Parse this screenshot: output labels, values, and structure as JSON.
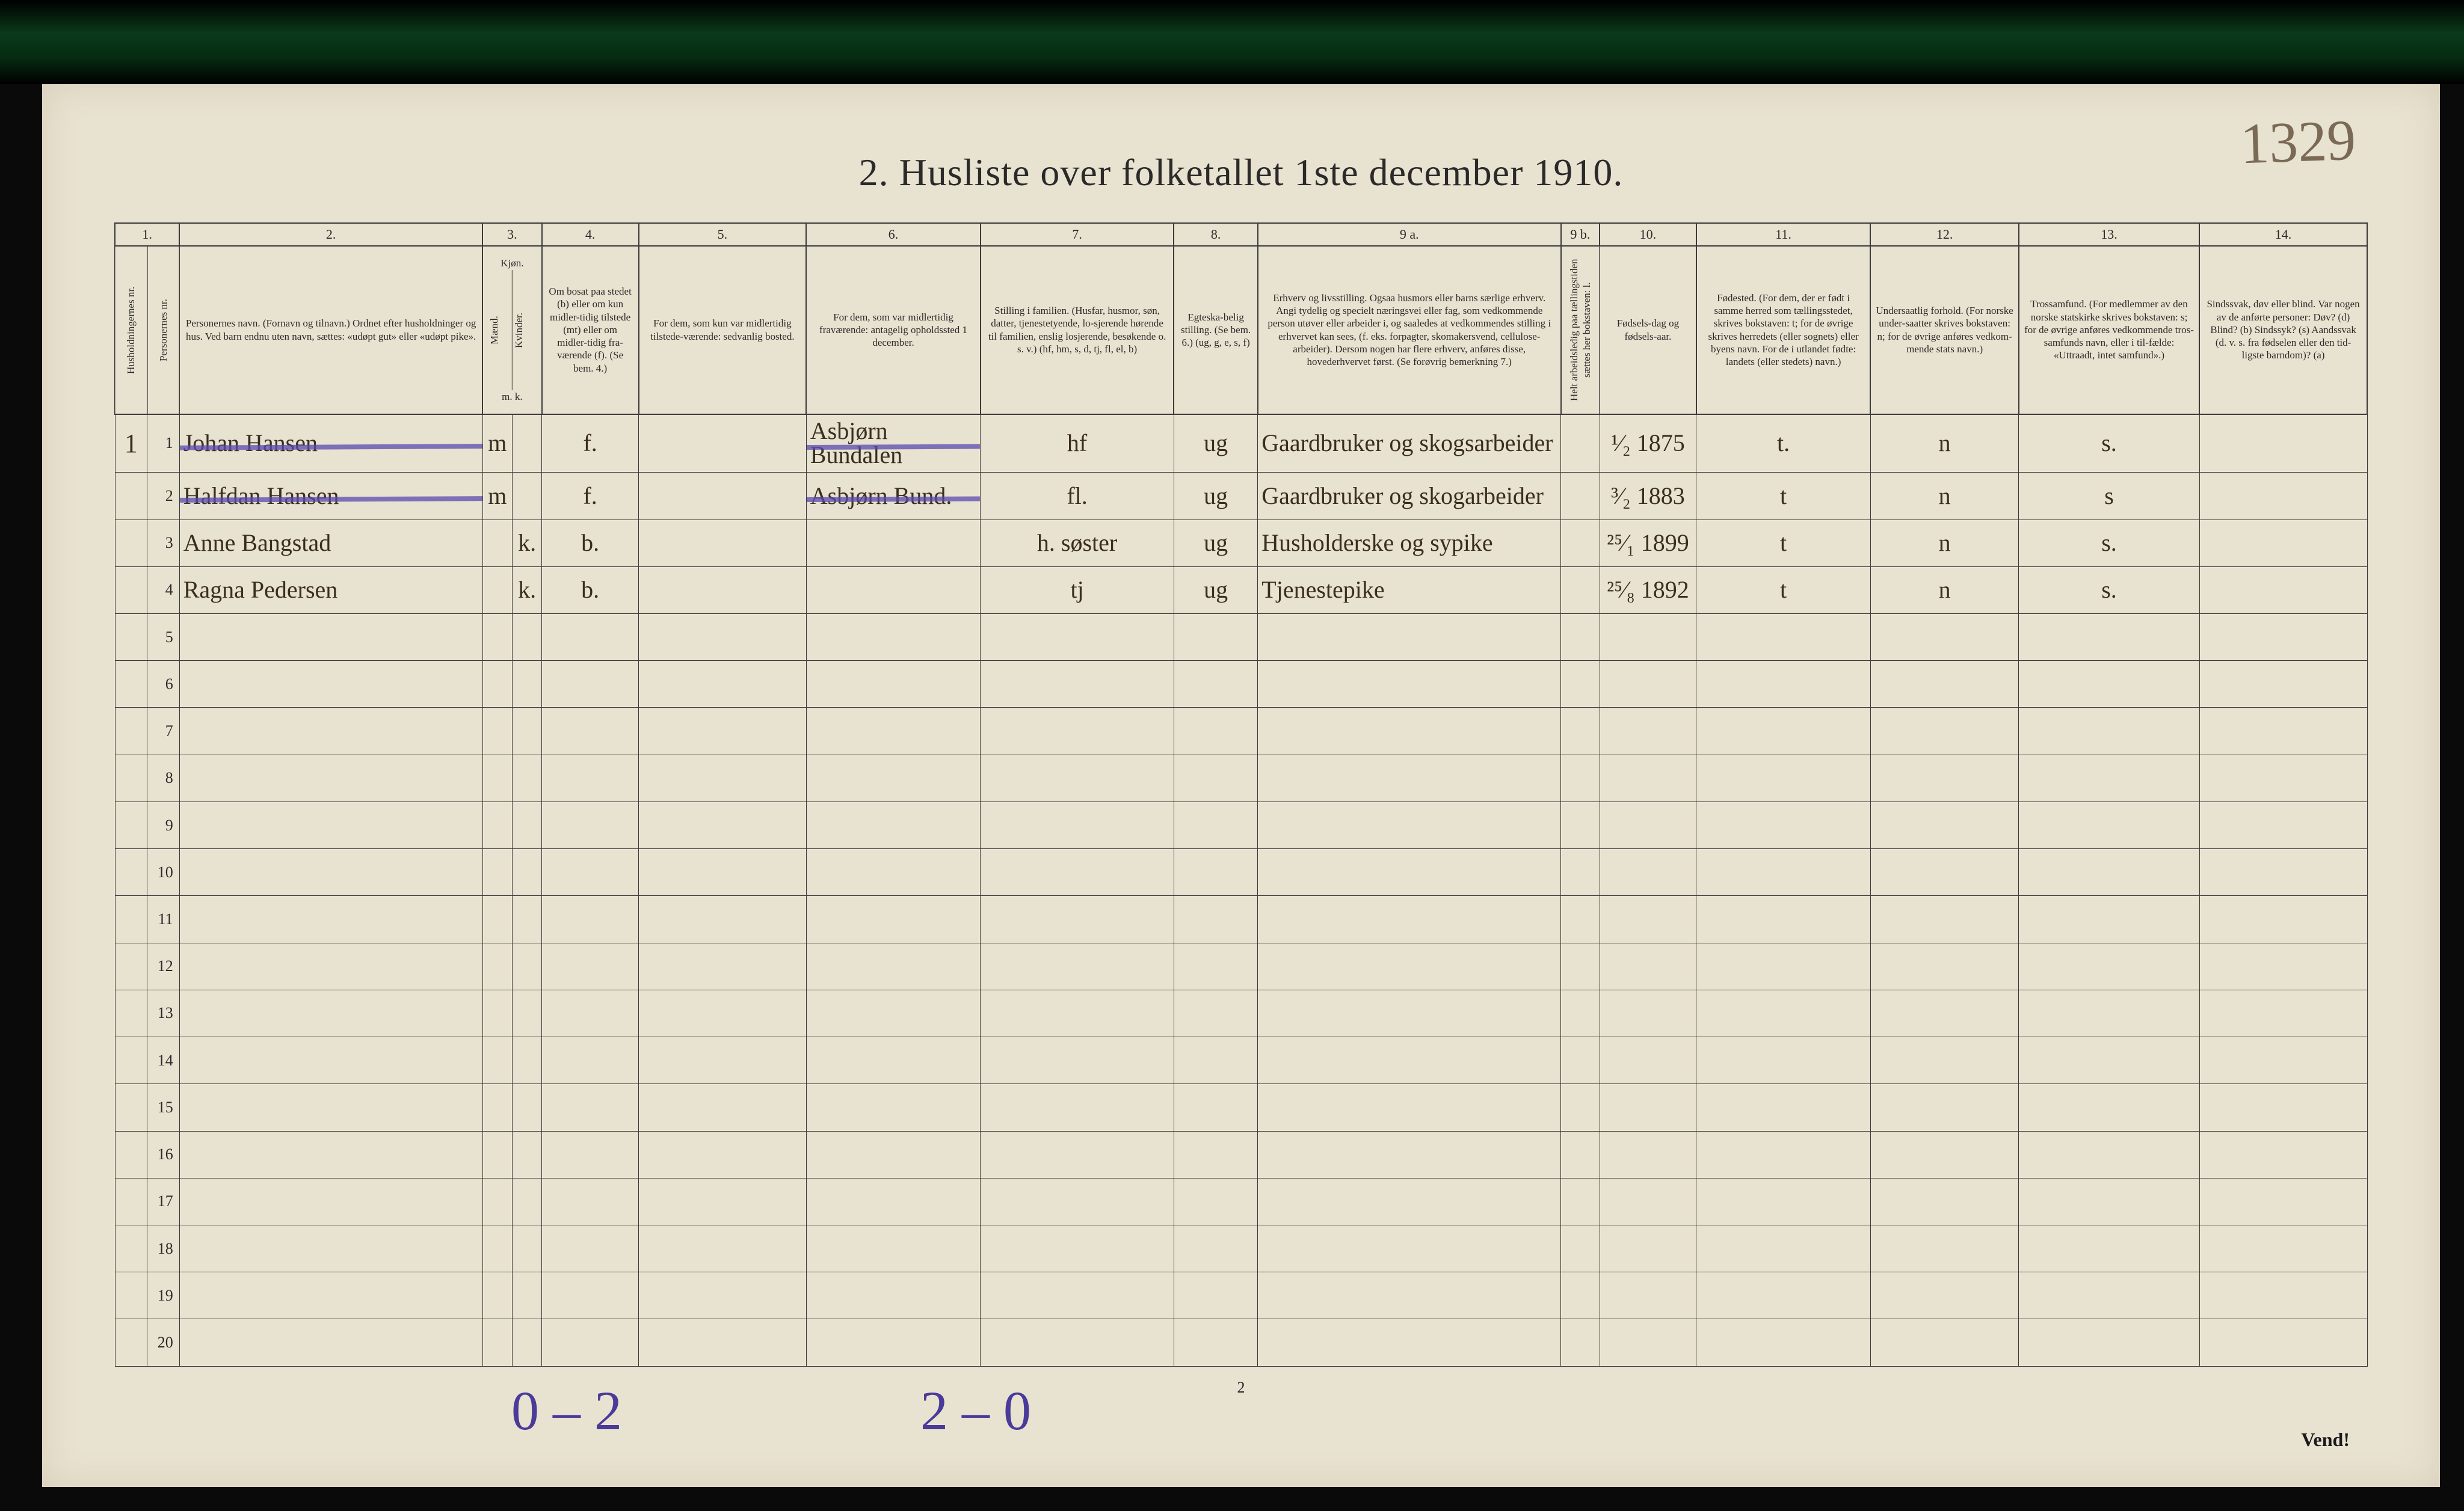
{
  "page_annotation": "1329",
  "title": "2.  Husliste over folketallet 1ste december 1910.",
  "footer_page": "2",
  "footer_turn": "Vend!",
  "bottom_note_left": "0 – 2",
  "bottom_note_mid": "2 – 0",
  "colors": {
    "paper": "#e8e2d0",
    "ink": "#2a2a2a",
    "handwriting": "#3a2e20",
    "purple_pencil": "#5a4ab0",
    "scanner_dark": "#0a0a0a"
  },
  "column_numbers": [
    "1.",
    "2.",
    "3.",
    "4.",
    "5.",
    "6.",
    "7.",
    "8.",
    "9 a.",
    "9 b.",
    "10.",
    "11.",
    "12.",
    "13.",
    "14."
  ],
  "headers": {
    "c1": "Husholdningernes nr.",
    "c1b": "Personernes nr.",
    "c2": "Personernes navn.\n(Fornavn og tilnavn.)\nOrdnet efter husholdninger og hus.\nVed barn endnu uten navn, sættes: «udøpt gut» eller «udøpt pike».",
    "c3": "Kjøn.",
    "c3a": "Mænd.",
    "c3b": "Kvinder.",
    "c3sub": "m.   k.",
    "c4": "Om bosat paa stedet (b) eller om kun midler-tidig tilstede (mt) eller om midler-tidig fra-værende (f).  (Se bem. 4.)",
    "c5": "For dem, som kun var midlertidig tilstede-værende:\nsedvanlig bosted.",
    "c6": "For dem, som var midlertidig fraværende:\nantagelig opholdssted 1 december.",
    "c7": "Stilling i familien.\n(Husfar, husmor, søn, datter, tjenestetyende, lo-sjerende hørende til familien, enslig losjerende, besøkende o. s. v.)\n(hf, hm, s, d, tj, fl, el, b)",
    "c8": "Egteska-belig stilling.\n(Se bem. 6.)\n(ug, g, e, s, f)",
    "c9a": "Erhverv og livsstilling.\nOgsaa husmors eller barns særlige erhverv.\nAngi tydelig og specielt næringsvei eller fag, som vedkommende person utøver eller arbeider i, og saaledes at vedkommendes stilling i erhvervet kan sees, (f. eks. forpagter, skomakersvend, cellulose-arbeider). Dersom nogen har flere erhverv, anføres disse, hovederhvervet først.\n(Se forøvrig bemerkning 7.)",
    "c9b": "Helt arbeidsledig paa tællingstiden sættes her bokstaven: l.",
    "c10": "Fødsels-dag og fødsels-aar.",
    "c11": "Fødested.\n(For dem, der er født i samme herred som tællingsstedet, skrives bokstaven: t; for de øvrige skrives herredets (eller sognets) eller byens navn. For de i utlandet fødte: landets (eller stedets) navn.)",
    "c12": "Undersaatlig forhold.\n(For norske under-saatter skrives bokstaven: n; for de øvrige anføres vedkom-mende stats navn.)",
    "c13": "Trossamfund.\n(For medlemmer av den norske statskirke skrives bokstaven: s; for de øvrige anføres vedkommende tros-samfunds navn, eller i til-fælde: «Uttraadt, intet samfund».)",
    "c14": "Sindssvak, døv eller blind.\nVar nogen av de anførte personer:\nDøv?         (d)\nBlind?        (b)\nSindssyk?  (s)\nAandssvak (d. v. s. fra fødselen eller den tid-ligste barndom)?  (a)"
  },
  "rows": [
    {
      "household": "1",
      "person": "1",
      "name": "Johan Hansen",
      "sex_m": "m",
      "sex_k": "",
      "status": "f.",
      "col5": "",
      "col6": "Asbjørn Bundalen",
      "col7": "hf",
      "col8": "ug",
      "col9a": "Gaardbruker og skogsarbeider",
      "col10": "¹⁄₂ 1875",
      "col11": "t.",
      "col12": "n",
      "col13": "s.",
      "struck": true
    },
    {
      "household": "",
      "person": "2",
      "name": "Halfdan Hansen",
      "sex_m": "m",
      "sex_k": "",
      "status": "f.",
      "col5": "",
      "col6": "Asbjørn Bund.",
      "col7": "fl.",
      "col8": "ug",
      "col9a": "Gaardbruker og skogarbeider",
      "col10": "³⁄₂ 1883",
      "col11": "t",
      "col12": "n",
      "col13": "s",
      "struck": true
    },
    {
      "household": "",
      "person": "3",
      "name": "Anne Bangstad",
      "sex_m": "",
      "sex_k": "k.",
      "status": "b.",
      "col5": "",
      "col6": "",
      "col7": "h. søster",
      "col8": "ug",
      "col9a": "Husholderske og sypike",
      "col10": "²⁵⁄₁ 1899",
      "col11": "t",
      "col12": "n",
      "col13": "s.",
      "struck": false
    },
    {
      "household": "",
      "person": "4",
      "name": "Ragna Pedersen",
      "sex_m": "",
      "sex_k": "k.",
      "status": "b.",
      "col5": "",
      "col6": "",
      "col7": "tj",
      "col8": "ug",
      "col9a": "Tjenestepike",
      "col10": "²⁵⁄₈ 1892",
      "col11": "t",
      "col12": "n",
      "col13": "s.",
      "struck": false
    }
  ],
  "empty_row_count": 16,
  "row_start_number": 5
}
